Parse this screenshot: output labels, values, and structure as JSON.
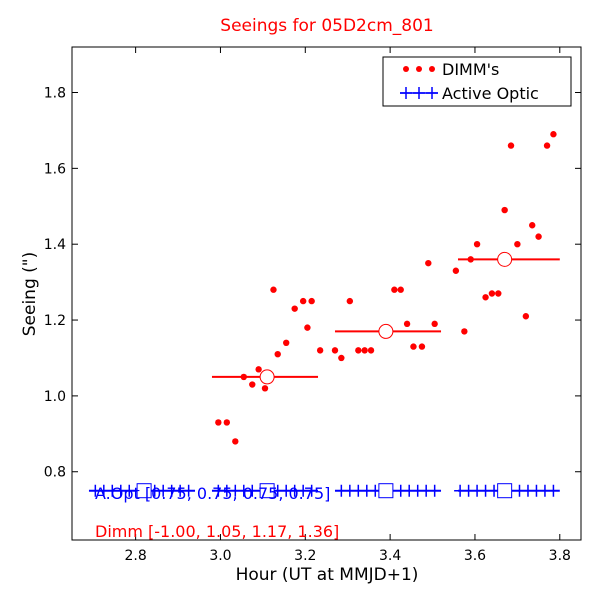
{
  "chart_data": {
    "type": "scatter",
    "title": "Seeings for 05D2cm_801",
    "xlabel": "Hour (UT at MMJD+1)",
    "ylabel": "Seeing (\")",
    "xlim": [
      2.65,
      3.85
    ],
    "ylim": [
      0.62,
      1.92
    ],
    "xticks": [
      2.8,
      3.0,
      3.2,
      3.4,
      3.6,
      3.8
    ],
    "xtick_labels": [
      "2.8",
      "3.0",
      "3.2",
      "3.4",
      "3.6",
      "3.8"
    ],
    "yticks": [
      0.8,
      1.0,
      1.2,
      1.4,
      1.6,
      1.8
    ],
    "ytick_labels": [
      "0.8",
      "1.0",
      "1.2",
      "1.4",
      "1.6",
      "1.8"
    ],
    "grid": false,
    "legend_position": "top-right",
    "legend": [
      {
        "label": "DIMM's",
        "color": "#ff0000",
        "marker": "dot"
      },
      {
        "label": "Active Optic",
        "color": "#0000ff",
        "marker": "plus"
      }
    ],
    "series": [
      {
        "name": "DIMM's",
        "color": "#ff0000",
        "x": [
          2.995,
          3.015,
          3.035,
          3.055,
          3.075,
          3.09,
          3.105,
          3.125,
          3.135,
          3.155,
          3.175,
          3.195,
          3.205,
          3.215,
          3.235,
          3.27,
          3.285,
          3.305,
          3.325,
          3.34,
          3.355,
          3.385,
          3.41,
          3.425,
          3.44,
          3.455,
          3.475,
          3.49,
          3.505,
          3.555,
          3.575,
          3.59,
          3.605,
          3.625,
          3.64,
          3.655,
          3.67,
          3.685,
          3.7,
          3.72,
          3.735,
          3.75,
          3.77,
          3.785
        ],
        "y": [
          0.93,
          0.93,
          0.88,
          1.05,
          1.03,
          1.07,
          1.02,
          1.28,
          1.11,
          1.14,
          1.23,
          1.25,
          1.18,
          1.25,
          1.12,
          1.12,
          1.1,
          1.25,
          1.12,
          1.12,
          1.12,
          1.17,
          1.28,
          1.28,
          1.19,
          1.13,
          1.13,
          1.35,
          1.19,
          1.33,
          1.17,
          1.36,
          1.4,
          1.26,
          1.27,
          1.27,
          1.49,
          1.66,
          1.4,
          1.21,
          1.45,
          1.42,
          1.66,
          1.69
        ]
      },
      {
        "name": "Active Optic",
        "color": "#0000ff",
        "x": [
          2.705,
          2.725,
          2.745,
          2.765,
          2.785,
          2.805,
          2.825,
          2.845,
          2.865,
          2.885,
          2.905,
          2.925,
          2.995,
          3.015,
          3.035,
          3.055,
          3.075,
          3.095,
          3.115,
          3.135,
          3.155,
          3.175,
          3.195,
          3.215,
          3.285,
          3.305,
          3.325,
          3.345,
          3.365,
          3.385,
          3.405,
          3.425,
          3.445,
          3.465,
          3.485,
          3.505,
          3.565,
          3.585,
          3.605,
          3.625,
          3.645,
          3.665,
          3.685,
          3.705,
          3.725,
          3.745,
          3.765,
          3.785
        ],
        "y": [
          0.75,
          0.75,
          0.75,
          0.75,
          0.75,
          0.75,
          0.75,
          0.75,
          0.75,
          0.75,
          0.75,
          0.75,
          0.75,
          0.75,
          0.75,
          0.75,
          0.75,
          0.75,
          0.75,
          0.75,
          0.75,
          0.75,
          0.75,
          0.75,
          0.75,
          0.75,
          0.75,
          0.75,
          0.75,
          0.75,
          0.75,
          0.75,
          0.75,
          0.75,
          0.75,
          0.75,
          0.75,
          0.75,
          0.75,
          0.75,
          0.75,
          0.75,
          0.75,
          0.75,
          0.75,
          0.75,
          0.75,
          0.75
        ]
      }
    ],
    "dimm_bins": [
      {
        "x": 3.11,
        "y": 1.05,
        "x_start": 2.98,
        "x_end": 3.23
      },
      {
        "x": 3.39,
        "y": 1.17,
        "x_start": 3.27,
        "x_end": 3.52
      },
      {
        "x": 3.67,
        "y": 1.36,
        "x_start": 3.56,
        "x_end": 3.8
      }
    ],
    "aopt_bins": [
      {
        "x": 2.82,
        "y": 0.75,
        "x_start": 2.69,
        "x_end": 2.94
      },
      {
        "x": 3.11,
        "y": 0.75,
        "x_start": 2.98,
        "x_end": 3.23
      },
      {
        "x": 3.39,
        "y": 0.75,
        "x_start": 3.27,
        "x_end": 3.52
      },
      {
        "x": 3.67,
        "y": 0.75,
        "x_start": 3.56,
        "x_end": 3.8
      }
    ],
    "annotations": {
      "aopt_text": "A.Opt [0.75, 0.75, 0.75, 0.75]",
      "dimm_text": "Dimm [-1.00, 1.05, 1.17, 1.36]"
    },
    "colors": {
      "dimm": "#ff0000",
      "aopt": "#0000ff",
      "title": "#ff0000"
    }
  }
}
